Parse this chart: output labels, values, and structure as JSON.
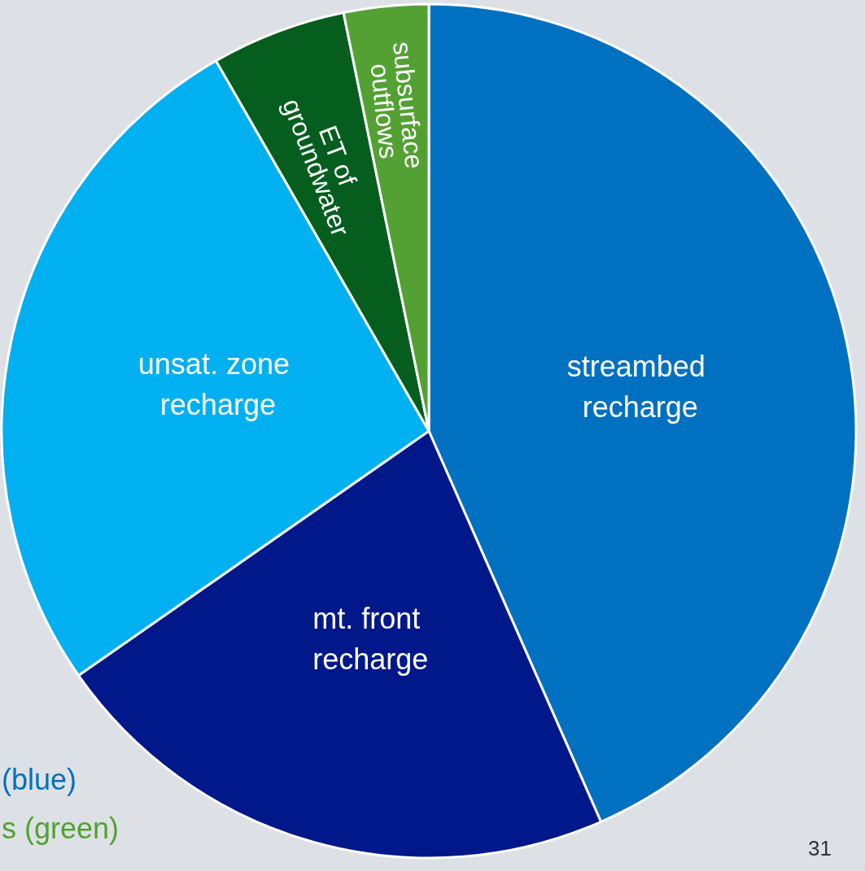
{
  "chart_data": {
    "type": "pie",
    "categories": [
      "streambed recharge",
      "mt. front recharge",
      "unsat. zone recharge",
      "ET of groundwater",
      "subsurface outflows"
    ],
    "values": [
      43.4,
      21.9,
      26.4,
      5.1,
      3.2
    ],
    "colors": [
      "#0070c0",
      "#00188a",
      "#00b0f0",
      "#055e1e",
      "#53a133"
    ],
    "annotations": [
      "(blue)",
      "s (green)",
      "31"
    ]
  }
}
